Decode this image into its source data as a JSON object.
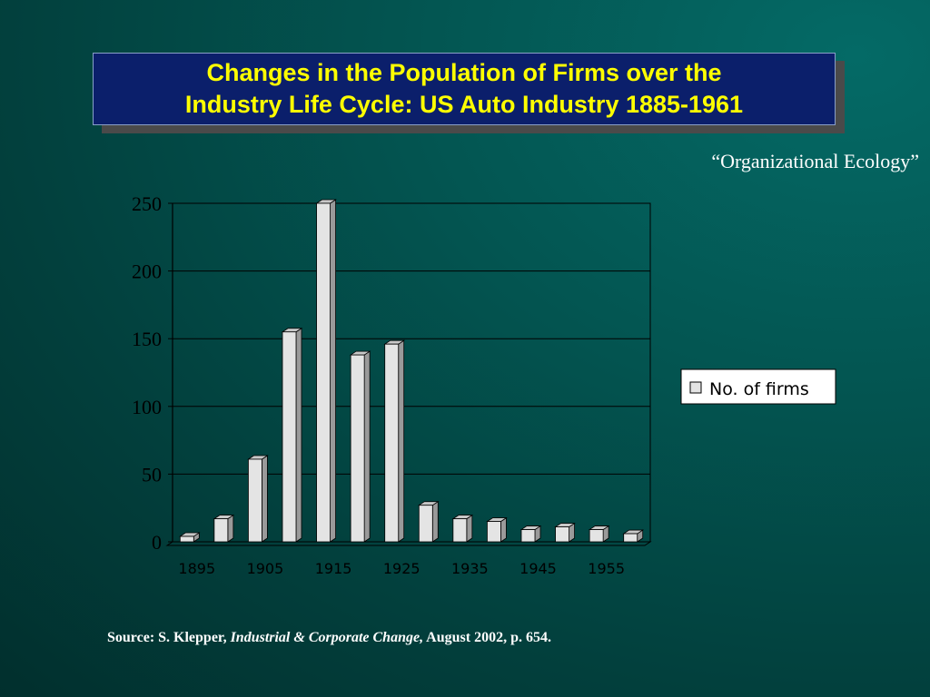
{
  "slide": {
    "title_line1": "Changes in the Population of Firms over the",
    "title_line2": "Industry Life Cycle: US Auto Industry 1885-1961",
    "subtitle": "“Organizational Ecology”",
    "title_bg": "#0b1f6b",
    "title_color": "#ffff00"
  },
  "source": {
    "prefix": "Source: S. Klepper, ",
    "journal": "Industrial & Corporate Change,",
    "suffix": " August 2002, p. 654."
  },
  "chart_data": {
    "type": "bar",
    "x_labels": [
      "1895",
      "1905",
      "1915",
      "1925",
      "1935",
      "1945",
      "1955"
    ],
    "categories": [
      "1895",
      "1900",
      "1905",
      "1910",
      "1915",
      "1920",
      "1925",
      "1930",
      "1935",
      "1940",
      "1945",
      "1950",
      "1955",
      "1960"
    ],
    "series": [
      {
        "name": "No. of firms",
        "values": [
          4,
          17,
          61,
          155,
          250,
          138,
          146,
          27,
          17,
          15,
          9,
          11,
          9,
          6
        ]
      }
    ],
    "y_ticks": [
      0,
      50,
      100,
      150,
      200,
      250
    ],
    "ylim": [
      0,
      250
    ],
    "grid": true,
    "legend_position": "right",
    "bar_color": "#e4e4e4"
  }
}
